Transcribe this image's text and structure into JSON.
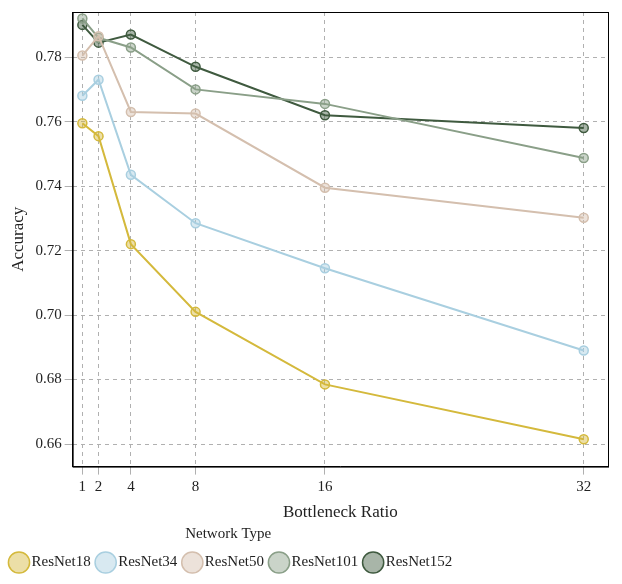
{
  "chart_data": {
    "type": "line",
    "x_label": "Bottleneck Ratio",
    "y_label": "Accuracy",
    "x": [
      1,
      2,
      4,
      8,
      16,
      32
    ],
    "xlim": [
      0.4,
      33.5
    ],
    "xticks": [
      1,
      2,
      4,
      8,
      16,
      32
    ],
    "ylim": [
      0.653,
      0.794
    ],
    "yticks": [
      0.66,
      0.68,
      {
        "value": 0.7,
        "label": "0.70"
      },
      0.72,
      0.74,
      0.76,
      0.78
    ],
    "grid": true,
    "legend": "bottom",
    "legend_title": "Network Type",
    "marker": "circle",
    "series": [
      {
        "name": "ResNet18",
        "color": "#d4b93c",
        "values": [
          0.7595,
          0.7555,
          0.722,
          0.701,
          0.6785,
          0.6615
        ]
      },
      {
        "name": "ResNet34",
        "color": "#a9cfe0",
        "values": [
          0.768,
          0.773,
          0.7435,
          0.7285,
          0.7145,
          0.689
        ]
      },
      {
        "name": "ResNet50",
        "color": "#d4bfae",
        "values": [
          0.7805,
          0.7865,
          0.763,
          0.7625,
          0.7395,
          0.7302
        ]
      },
      {
        "name": "ResNet101",
        "color": "#8a9f88",
        "values": [
          0.792,
          0.786,
          0.783,
          0.77,
          0.7655,
          0.7487
        ]
      },
      {
        "name": "ResNet152",
        "color": "#3f5a3f",
        "values": [
          0.79,
          0.7845,
          0.787,
          0.777,
          0.762,
          0.758
        ]
      }
    ]
  }
}
